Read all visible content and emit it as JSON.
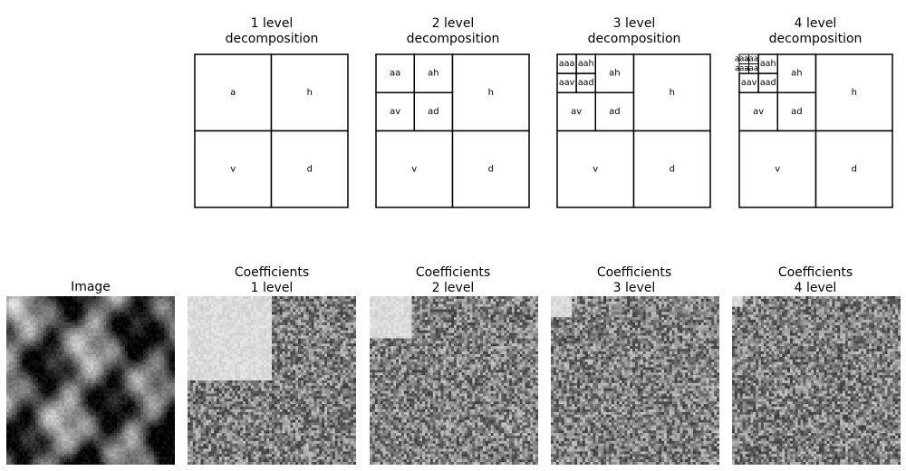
{
  "figure": {
    "image_title": "Image",
    "decomposition_panels": [
      {
        "title_line1": "1 level",
        "title_line2": "decomposition",
        "cells": [
          {
            "label": "a"
          },
          {
            "label": "h"
          },
          {
            "label": "v"
          },
          {
            "label": "d"
          }
        ]
      },
      {
        "title_line1": "2 level",
        "title_line2": "decomposition",
        "cells": [
          {
            "label": "aa"
          },
          {
            "label": "ah"
          },
          {
            "label": "av"
          },
          {
            "label": "ad"
          },
          {
            "label": "h"
          },
          {
            "label": "v"
          },
          {
            "label": "d"
          }
        ]
      },
      {
        "title_line1": "3 level",
        "title_line2": "decomposition",
        "cells": [
          {
            "label": "aaa"
          },
          {
            "label": "aah"
          },
          {
            "label": "aav"
          },
          {
            "label": "aad"
          },
          {
            "label": "ah"
          },
          {
            "label": "av"
          },
          {
            "label": "ad"
          },
          {
            "label": "h"
          },
          {
            "label": "v"
          },
          {
            "label": "d"
          }
        ]
      },
      {
        "title_line1": "4 level",
        "title_line2": "decomposition",
        "cells": [
          {
            "label": "aaaa"
          },
          {
            "label": "aaah"
          },
          {
            "label": "aaav"
          },
          {
            "label": "aaad"
          },
          {
            "label": "aah"
          },
          {
            "label": "aav"
          },
          {
            "label": "aad"
          },
          {
            "label": "ah"
          },
          {
            "label": "av"
          },
          {
            "label": "ad"
          },
          {
            "label": "h"
          },
          {
            "label": "v"
          },
          {
            "label": "d"
          }
        ]
      }
    ],
    "coefficient_panels": [
      {
        "title_line1": "Coefficients",
        "title_line2": "1 level",
        "level": 1
      },
      {
        "title_line1": "Coefficients",
        "title_line2": "2 level",
        "level": 2
      },
      {
        "title_line1": "Coefficients",
        "title_line2": "3 level",
        "level": 3
      },
      {
        "title_line1": "Coefficients",
        "title_line2": "4 level",
        "level": 4
      }
    ],
    "colormap": "gray"
  }
}
